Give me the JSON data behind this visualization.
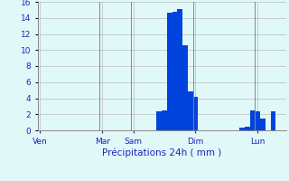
{
  "bar_color": "#0044dd",
  "bg_color": "#e0f8f8",
  "grid_color": "#bbbbbb",
  "text_color": "#2222bb",
  "ylim": [
    0,
    16
  ],
  "yticks": [
    0,
    2,
    4,
    6,
    8,
    10,
    12,
    14,
    16
  ],
  "xlabel": "Précipitations 24h ( mm )",
  "day_labels": [
    "Ven",
    "Mar",
    "Sam",
    "Dim",
    "Lun"
  ],
  "day_tick_positions": [
    0,
    12,
    18,
    30,
    42
  ],
  "n_bars": 48,
  "bar_values": [
    0,
    0,
    0,
    0,
    0,
    0,
    0,
    0,
    0,
    0,
    0,
    0,
    0,
    0,
    0,
    0,
    0,
    0,
    0,
    0,
    0,
    0,
    0,
    2.4,
    2.5,
    14.7,
    14.8,
    15.1,
    10.6,
    4.8,
    4.2,
    0,
    0,
    0,
    0,
    0,
    0,
    0,
    0,
    0.3,
    0.5,
    2.5,
    2.4,
    1.5,
    0,
    2.4,
    0,
    0
  ],
  "figsize": [
    3.2,
    2.0
  ],
  "dpi": 100
}
